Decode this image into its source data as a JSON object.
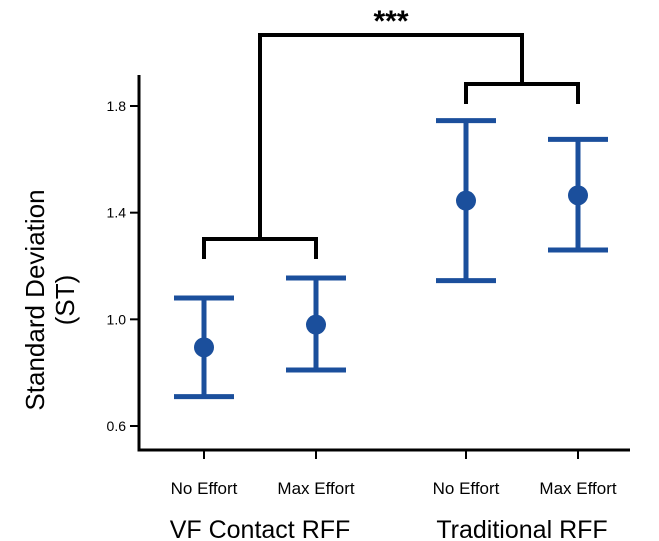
{
  "chart_data": {
    "type": "scatter",
    "title": "",
    "ylabel_line1": "Standard Deviation",
    "ylabel_line2": "(ST)",
    "ylim": [
      0.5,
      1.95
    ],
    "yticks": [
      {
        "value": 0.6,
        "label": "0.6"
      },
      {
        "value": 1.0,
        "label": "1.0"
      },
      {
        "value": 1.4,
        "label": "1.4"
      },
      {
        "value": 1.8,
        "label": "1.8"
      }
    ],
    "color": "#1b4f9c",
    "groups": [
      {
        "label": "VF Contact RFF",
        "points": [
          {
            "condition": "No Effort",
            "mean": 0.895,
            "lower": 0.71,
            "upper": 1.08
          },
          {
            "condition": "Max Effort",
            "mean": 0.98,
            "lower": 0.81,
            "upper": 1.155
          }
        ]
      },
      {
        "label": "Traditional RFF",
        "points": [
          {
            "condition": "No Effort",
            "mean": 1.445,
            "lower": 1.145,
            "upper": 1.745
          },
          {
            "condition": "Max Effort",
            "mean": 1.465,
            "lower": 1.26,
            "upper": 1.675
          }
        ]
      }
    ],
    "significance": "***"
  }
}
